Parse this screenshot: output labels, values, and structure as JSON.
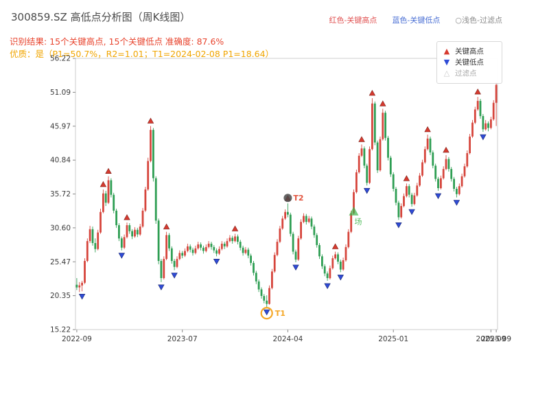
{
  "colors": {
    "titleText": "#4a4a4a",
    "resultText": "#e8442e",
    "qualityText": "#f0a500",
    "legendRed": "#e05252",
    "legendBlue": "#4a6fd4",
    "legendGray": "#8a8a8a"
  },
  "header": {
    "title": "300859.SZ 高低点分析图（周K线图）",
    "top_legend": [
      {
        "label": "红色-关键高点",
        "color": "#e05252"
      },
      {
        "label": "蓝色-关键低点",
        "color": "#4a6fd4"
      },
      {
        "label": "○浅色-过滤点",
        "color": "#8a8a8a"
      }
    ],
    "result_line": "识别结果: 15个关键高点, 15个关键低点  准确度: 87.6%",
    "quality_line": "优质：是（P1=50.7%，R2=1.01；T1=2024-02-08 P1=18.64）"
  },
  "chart_data": {
    "type": "candlestick",
    "title": "300859.SZ 高低点分析图（周K线图）",
    "ylim": [
      15.22,
      56.22
    ],
    "yticks": [
      "56.22",
      "51.09",
      "45.97",
      "40.84",
      "35.72",
      "30.60",
      "25.47",
      "20.35",
      "15.22"
    ],
    "xticks": [
      {
        "i": 0,
        "label": "2022-09"
      },
      {
        "i": 40,
        "label": "2023-07"
      },
      {
        "i": 80,
        "label": "2024-04"
      },
      {
        "i": 120,
        "label": "2025-01"
      },
      {
        "i": 157,
        "label": "2025-09"
      },
      {
        "i": 159,
        "label": "2025-09"
      }
    ],
    "colors": {
      "up": "#d6453c",
      "down": "#2e9e53",
      "high": "#d63a2f",
      "low": "#2f4bd6",
      "frame": "#cccccc"
    },
    "legend": {
      "items": [
        {
          "symbol": "▲",
          "label": "关键高点",
          "color": "#d63a2f",
          "text": "#333333"
        },
        {
          "symbol": "▼",
          "label": "关键低点",
          "color": "#2f4bd6",
          "text": "#333333"
        },
        {
          "symbol": "△",
          "label": "过滤点",
          "color": "#c9c9c9",
          "text": "#aaaaaa"
        }
      ]
    },
    "candles": [
      [
        22.0,
        23.0,
        21.2,
        21.6
      ],
      [
        21.6,
        22.4,
        20.9,
        21.9
      ],
      [
        21.9,
        22.6,
        21.0,
        22.3
      ],
      [
        22.3,
        26.0,
        22.1,
        25.6
      ],
      [
        25.6,
        29.0,
        25.4,
        28.6
      ],
      [
        28.6,
        30.9,
        28.3,
        30.4
      ],
      [
        30.4,
        30.8,
        27.9,
        28.3
      ],
      [
        28.3,
        29.0,
        26.9,
        27.4
      ],
      [
        27.4,
        30.3,
        27.2,
        29.9
      ],
      [
        29.9,
        33.5,
        29.7,
        33.0
      ],
      [
        33.0,
        36.4,
        32.8,
        35.8
      ],
      [
        35.8,
        36.2,
        33.9,
        34.4
      ],
      [
        34.4,
        38.4,
        34.2,
        37.8
      ],
      [
        37.8,
        38.1,
        35.2,
        35.6
      ],
      [
        35.6,
        35.9,
        32.8,
        33.2
      ],
      [
        33.2,
        33.5,
        30.6,
        31.0
      ],
      [
        31.0,
        31.3,
        28.6,
        29.0
      ],
      [
        29.0,
        29.3,
        27.2,
        27.6
      ],
      [
        27.6,
        29.6,
        27.4,
        29.2
      ],
      [
        29.2,
        31.4,
        29.0,
        31.0
      ],
      [
        31.0,
        31.3,
        29.7,
        30.1
      ],
      [
        30.1,
        30.4,
        28.9,
        29.3
      ],
      [
        29.3,
        30.7,
        29.1,
        30.3
      ],
      [
        30.3,
        30.6,
        29.2,
        29.6
      ],
      [
        29.6,
        31.2,
        29.4,
        30.8
      ],
      [
        30.8,
        33.6,
        30.6,
        33.2
      ],
      [
        33.2,
        36.8,
        33.0,
        36.4
      ],
      [
        36.4,
        41.2,
        36.2,
        40.7
      ],
      [
        40.7,
        46.0,
        40.5,
        45.4
      ],
      [
        45.4,
        45.7,
        37.6,
        38.1
      ],
      [
        38.1,
        38.4,
        31.2,
        31.7
      ],
      [
        31.7,
        32.0,
        25.1,
        25.6
      ],
      [
        25.6,
        25.9,
        22.4,
        23.0
      ],
      [
        23.0,
        26.3,
        22.8,
        25.9
      ],
      [
        25.9,
        30.0,
        25.7,
        29.5
      ],
      [
        29.5,
        29.8,
        27.1,
        27.5
      ],
      [
        27.5,
        27.8,
        25.2,
        25.6
      ],
      [
        25.6,
        25.9,
        24.2,
        24.7
      ],
      [
        24.7,
        26.3,
        24.5,
        25.9
      ],
      [
        25.9,
        27.2,
        25.7,
        26.8
      ],
      [
        26.8,
        27.1,
        26.0,
        26.4
      ],
      [
        26.4,
        27.5,
        26.2,
        27.1
      ],
      [
        27.1,
        28.2,
        26.9,
        27.8
      ],
      [
        27.8,
        28.1,
        26.9,
        27.3
      ],
      [
        27.3,
        27.6,
        26.4,
        26.8
      ],
      [
        26.8,
        27.9,
        26.6,
        27.5
      ],
      [
        27.5,
        28.5,
        27.3,
        28.1
      ],
      [
        28.1,
        28.4,
        27.2,
        27.6
      ],
      [
        27.6,
        27.9,
        26.7,
        27.1
      ],
      [
        27.1,
        28.1,
        26.9,
        27.7
      ],
      [
        27.7,
        28.6,
        27.5,
        28.2
      ],
      [
        28.2,
        28.5,
        27.3,
        27.7
      ],
      [
        27.7,
        28.0,
        26.8,
        27.2
      ],
      [
        27.2,
        27.5,
        26.3,
        26.7
      ],
      [
        26.7,
        27.8,
        26.5,
        27.4
      ],
      [
        27.4,
        28.6,
        27.2,
        28.2
      ],
      [
        28.2,
        28.5,
        27.4,
        27.8
      ],
      [
        27.8,
        29.0,
        27.6,
        28.6
      ],
      [
        28.6,
        29.5,
        28.4,
        29.1
      ],
      [
        29.1,
        29.4,
        28.2,
        28.6
      ],
      [
        28.6,
        29.7,
        28.4,
        29.3
      ],
      [
        29.3,
        29.6,
        28.1,
        28.5
      ],
      [
        28.5,
        28.8,
        27.2,
        27.6
      ],
      [
        27.6,
        27.9,
        26.4,
        26.8
      ],
      [
        26.8,
        27.7,
        26.6,
        27.3
      ],
      [
        27.3,
        27.6,
        26.0,
        26.4
      ],
      [
        26.4,
        26.7,
        24.9,
        25.3
      ],
      [
        25.3,
        25.6,
        23.4,
        23.8
      ],
      [
        23.8,
        24.1,
        22.1,
        22.5
      ],
      [
        22.5,
        22.8,
        20.9,
        21.3
      ],
      [
        21.3,
        21.6,
        19.9,
        20.3
      ],
      [
        20.3,
        20.6,
        19.2,
        19.6
      ],
      [
        19.6,
        20.4,
        18.64,
        19.1
      ],
      [
        19.1,
        21.9,
        19.0,
        21.5
      ],
      [
        21.5,
        24.4,
        21.3,
        24.0
      ],
      [
        24.0,
        26.9,
        23.8,
        26.5
      ],
      [
        26.5,
        28.9,
        26.3,
        28.5
      ],
      [
        28.5,
        30.9,
        28.3,
        30.5
      ],
      [
        30.5,
        32.4,
        30.3,
        32.0
      ],
      [
        32.0,
        33.4,
        31.8,
        33.0
      ],
      [
        33.0,
        34.3,
        32.2,
        32.6
      ],
      [
        32.6,
        32.9,
        29.3,
        29.7
      ],
      [
        29.7,
        30.0,
        26.6,
        27.0
      ],
      [
        27.0,
        27.3,
        25.4,
        25.8
      ],
      [
        25.8,
        29.4,
        25.6,
        29.0
      ],
      [
        29.0,
        31.9,
        28.8,
        31.5
      ],
      [
        31.5,
        32.8,
        31.3,
        32.4
      ],
      [
        32.4,
        32.7,
        31.1,
        31.5
      ],
      [
        31.5,
        32.4,
        31.3,
        32.0
      ],
      [
        32.0,
        32.3,
        30.4,
        30.8
      ],
      [
        30.8,
        31.1,
        29.1,
        29.5
      ],
      [
        29.5,
        29.8,
        27.6,
        28.0
      ],
      [
        28.0,
        28.3,
        25.9,
        26.3
      ],
      [
        26.3,
        26.6,
        24.4,
        24.8
      ],
      [
        24.8,
        25.1,
        23.3,
        23.7
      ],
      [
        23.7,
        24.0,
        22.6,
        23.0
      ],
      [
        23.0,
        24.9,
        22.8,
        24.5
      ],
      [
        24.5,
        26.4,
        24.3,
        26.0
      ],
      [
        26.0,
        27.0,
        25.8,
        26.6
      ],
      [
        26.6,
        26.9,
        25.1,
        25.5
      ],
      [
        25.5,
        25.8,
        23.9,
        24.3
      ],
      [
        24.3,
        26.1,
        24.1,
        25.7
      ],
      [
        25.7,
        28.1,
        25.5,
        27.7
      ],
      [
        27.7,
        30.4,
        27.5,
        30.0
      ],
      [
        30.0,
        33.2,
        29.8,
        32.8
      ],
      [
        32.8,
        36.4,
        32.6,
        36.0
      ],
      [
        36.0,
        39.4,
        35.8,
        39.0
      ],
      [
        39.0,
        41.9,
        38.8,
        41.5
      ],
      [
        41.5,
        43.2,
        41.3,
        42.6
      ],
      [
        42.6,
        42.9,
        39.6,
        40.0
      ],
      [
        40.0,
        40.3,
        37.0,
        37.4
      ],
      [
        37.4,
        42.9,
        37.2,
        42.5
      ],
      [
        42.5,
        50.2,
        42.3,
        49.4
      ],
      [
        49.4,
        49.7,
        43.1,
        43.5
      ],
      [
        43.5,
        43.8,
        38.9,
        39.3
      ],
      [
        39.3,
        44.4,
        39.1,
        44.0
      ],
      [
        44.0,
        48.6,
        43.8,
        48.0
      ],
      [
        48.0,
        48.3,
        43.8,
        44.2
      ],
      [
        44.2,
        44.5,
        40.8,
        41.2
      ],
      [
        41.2,
        41.5,
        38.3,
        38.7
      ],
      [
        38.7,
        39.0,
        36.1,
        36.5
      ],
      [
        36.5,
        36.8,
        34.0,
        34.4
      ],
      [
        34.4,
        34.7,
        31.8,
        32.2
      ],
      [
        32.2,
        34.3,
        32.0,
        33.9
      ],
      [
        33.9,
        35.8,
        33.7,
        35.4
      ],
      [
        35.4,
        37.3,
        35.2,
        36.9
      ],
      [
        36.9,
        37.2,
        35.2,
        35.6
      ],
      [
        35.6,
        35.9,
        33.8,
        34.2
      ],
      [
        34.2,
        35.9,
        34.0,
        35.5
      ],
      [
        35.5,
        37.4,
        35.3,
        37.0
      ],
      [
        37.0,
        38.9,
        36.8,
        38.5
      ],
      [
        38.5,
        40.9,
        38.3,
        40.5
      ],
      [
        40.5,
        42.9,
        40.3,
        42.5
      ],
      [
        42.5,
        44.7,
        42.3,
        44.1
      ],
      [
        44.1,
        44.4,
        41.6,
        42.0
      ],
      [
        42.0,
        42.3,
        39.6,
        40.0
      ],
      [
        40.0,
        40.3,
        37.6,
        38.0
      ],
      [
        38.0,
        38.3,
        36.2,
        36.6
      ],
      [
        36.6,
        38.5,
        36.4,
        38.1
      ],
      [
        38.1,
        39.9,
        37.9,
        39.5
      ],
      [
        39.5,
        41.6,
        39.3,
        41.0
      ],
      [
        41.0,
        41.3,
        39.1,
        39.5
      ],
      [
        39.5,
        39.8,
        37.6,
        38.0
      ],
      [
        38.0,
        38.3,
        36.1,
        36.5
      ],
      [
        36.5,
        36.8,
        35.2,
        35.7
      ],
      [
        35.7,
        37.3,
        35.5,
        36.9
      ],
      [
        36.9,
        38.8,
        36.7,
        38.4
      ],
      [
        38.4,
        40.3,
        38.2,
        39.9
      ],
      [
        39.9,
        42.3,
        39.7,
        41.9
      ],
      [
        41.9,
        44.8,
        41.7,
        44.4
      ],
      [
        44.4,
        46.9,
        44.2,
        46.5
      ],
      [
        46.5,
        48.9,
        46.3,
        48.5
      ],
      [
        48.5,
        50.4,
        48.3,
        49.8
      ],
      [
        49.8,
        50.1,
        47.1,
        47.5
      ],
      [
        47.5,
        47.8,
        45.1,
        45.5
      ],
      [
        45.5,
        46.9,
        45.3,
        46.4
      ],
      [
        46.4,
        46.7,
        45.2,
        45.7
      ],
      [
        45.7,
        47.4,
        45.5,
        47.0
      ],
      [
        47.0,
        49.9,
        46.8,
        49.5
      ],
      [
        49.5,
        52.6,
        46.0,
        52.2
      ]
    ],
    "key_highs": [
      {
        "i": 10,
        "price": 36.4
      },
      {
        "i": 12,
        "price": 38.4
      },
      {
        "i": 19,
        "price": 31.4
      },
      {
        "i": 28,
        "price": 46.0
      },
      {
        "i": 34,
        "price": 30.0
      },
      {
        "i": 60,
        "price": 29.7
      },
      {
        "i": 80,
        "price": 34.3
      },
      {
        "i": 98,
        "price": 27.0
      },
      {
        "i": 108,
        "price": 43.2
      },
      {
        "i": 112,
        "price": 50.2
      },
      {
        "i": 116,
        "price": 48.6
      },
      {
        "i": 125,
        "price": 37.3
      },
      {
        "i": 133,
        "price": 44.7
      },
      {
        "i": 140,
        "price": 41.6
      },
      {
        "i": 152,
        "price": 50.4
      }
    ],
    "key_lows": [
      {
        "i": 2,
        "price": 21.0
      },
      {
        "i": 17,
        "price": 27.2
      },
      {
        "i": 32,
        "price": 22.4
      },
      {
        "i": 37,
        "price": 24.2
      },
      {
        "i": 53,
        "price": 26.3
      },
      {
        "i": 72,
        "price": 18.64
      },
      {
        "i": 83,
        "price": 25.4
      },
      {
        "i": 95,
        "price": 22.6
      },
      {
        "i": 100,
        "price": 23.9
      },
      {
        "i": 110,
        "price": 37.0
      },
      {
        "i": 122,
        "price": 31.8
      },
      {
        "i": 127,
        "price": 33.8
      },
      {
        "i": 137,
        "price": 36.2
      },
      {
        "i": 144,
        "price": 35.2
      },
      {
        "i": 154,
        "price": 45.1
      }
    ],
    "annotations": [
      {
        "text": "T1",
        "i": 72,
        "price": 18.64,
        "type": "circle-low",
        "color": "#f5a623"
      },
      {
        "text": "T2",
        "i": 80,
        "price": 34.3,
        "type": "dot-high",
        "color": "#e2543e"
      },
      {
        "text": "场",
        "i": 105,
        "price": 33.0,
        "type": "entry",
        "color": "#3cb54a"
      }
    ]
  }
}
